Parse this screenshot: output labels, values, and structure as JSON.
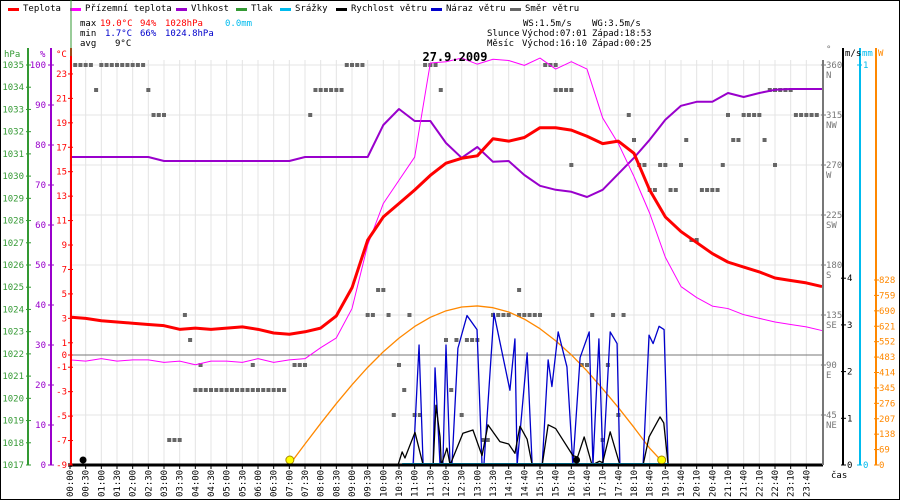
{
  "legend": [
    {
      "label": "Teplota",
      "color": "#ff0000"
    },
    {
      "label": "Přízemní teplota",
      "color": "#ff00ff"
    },
    {
      "label": "Vlhkost",
      "color": "#9900cc"
    },
    {
      "label": "Tlak",
      "color": "#339933"
    },
    {
      "label": "Srážky",
      "color": "#00bbee"
    },
    {
      "label": "Rychlost větru",
      "color": "#000000"
    },
    {
      "label": "Náraz větru",
      "color": "#0000cc"
    },
    {
      "label": "Směr větru",
      "color": "#666666"
    }
  ],
  "stats": {
    "max_label": "max",
    "max_temp": "19.0°C",
    "max_hum": "94%",
    "max_press": "1028hPa",
    "max_rain": "0.0mm",
    "min_label": "min",
    "min_temp": "1.7°C",
    "min_hum": "66%",
    "min_press": "1024.8hPa",
    "avg_label": "avg",
    "avg_temp": "9°C"
  },
  "astro": {
    "ws": "WS:1.5m/s",
    "wg": "WG:3.5m/s",
    "sun_label": "Slunce",
    "sun_rise": "Východ:07:01",
    "sun_set": "Západ:18:53",
    "moon_label": "Měsíc",
    "moon_rise": "Východ:16:10",
    "moon_set": "Západ:00:25"
  },
  "colors": {
    "temp": "#ff0000",
    "apparent": "#ff00ff",
    "humidity": "#9900cc",
    "pressure": "#339933",
    "precip": "#00bbee",
    "wind": "#000000",
    "gust": "#0000cc",
    "direction": "#666666",
    "solar": "#ff8800"
  },
  "chart_data": {
    "type": "line",
    "title": "27.9.2009",
    "xlabel": "čas",
    "x_tick_labels": [
      "00:00",
      "00:30",
      "01:00",
      "01:30",
      "02:00",
      "02:30",
      "03:00",
      "03:30",
      "04:00",
      "04:30",
      "05:00",
      "05:30",
      "06:00",
      "06:30",
      "07:00",
      "07:30",
      "08:00",
      "08:30",
      "09:00",
      "09:30",
      "10:00",
      "10:30",
      "11:00",
      "11:30",
      "12:00",
      "12:30",
      "13:00",
      "13:30",
      "14:10",
      "14:40",
      "15:10",
      "15:40",
      "16:10",
      "16:40",
      "17:10",
      "17:40",
      "18:10",
      "18:40",
      "19:10",
      "19:40",
      "20:10",
      "20:40",
      "21:10",
      "21:40",
      "22:10",
      "22:40",
      "23:10",
      "23:40"
    ],
    "xlim_hours": [
      0,
      24
    ],
    "axes": {
      "pressure": {
        "label": "hPa",
        "range": [
          1017,
          1035
        ],
        "ticks": [
          1017,
          1018,
          1019,
          1020,
          1021,
          1022,
          1023,
          1024,
          1025,
          1026,
          1027,
          1028,
          1029,
          1030,
          1031,
          1032,
          1033,
          1034,
          1035
        ]
      },
      "humidity": {
        "label": "%",
        "range": [
          0,
          100
        ],
        "ticks": [
          0,
          10,
          20,
          30,
          40,
          50,
          60,
          70,
          80,
          90,
          100
        ]
      },
      "temperature": {
        "label": "°C",
        "range": [
          -9,
          23.7
        ],
        "ticks": [
          -9,
          -7,
          -5,
          -3,
          -1,
          0,
          1,
          3,
          5,
          7,
          9,
          11,
          13,
          15,
          17,
          19,
          21,
          23
        ]
      },
      "direction": {
        "label": "°",
        "range": [
          0,
          360
        ],
        "ticks": [
          {
            "v": 45,
            "c": "NE"
          },
          {
            "v": 90,
            "c": "E"
          },
          {
            "v": 135,
            "c": "SE"
          },
          {
            "v": 180,
            "c": "S"
          },
          {
            "v": 225,
            "c": "SW"
          },
          {
            "v": 270,
            "c": "W"
          },
          {
            "v": 315,
            "c": "NW"
          },
          {
            "v": 360,
            "c": "N"
          }
        ]
      },
      "wind": {
        "label": "m/s",
        "range": [
          0,
          8.57
        ],
        "ticks": [
          0,
          1,
          2,
          3,
          4
        ]
      },
      "precip": {
        "label": "mm",
        "range": [
          0,
          1
        ],
        "ticks": [
          0,
          1
        ]
      },
      "solar": {
        "label": "W",
        "range": [
          0,
          1790
        ],
        "ticks": [
          0,
          69,
          138,
          207,
          276,
          345,
          414,
          483,
          552,
          621,
          690,
          759,
          828
        ]
      }
    },
    "series": {
      "temperature": {
        "name": "Teplota",
        "step_hours": 0.5,
        "values": [
          3.1,
          3.0,
          2.8,
          2.7,
          2.6,
          2.5,
          2.4,
          2.1,
          2.2,
          2.1,
          2.2,
          2.3,
          2.1,
          1.8,
          1.7,
          1.9,
          2.2,
          3.2,
          5.5,
          9.4,
          11.3,
          12.4,
          13.5,
          14.7,
          15.7,
          16.1,
          16.3,
          17.7,
          17.5,
          17.8,
          18.6,
          18.6,
          18.4,
          17.9,
          17.3,
          17.5,
          16.5,
          13.5,
          11.3,
          10.1,
          9.2,
          8.3,
          7.6,
          7.2,
          6.8,
          6.3,
          6.1,
          5.9,
          5.6
        ]
      },
      "apparent": {
        "name": "Přízemní teplota",
        "step_hours": 0.5,
        "values": [
          -0.4,
          -0.5,
          -0.3,
          -0.5,
          -0.4,
          -0.4,
          -0.6,
          -0.5,
          -0.8,
          -0.5,
          -0.5,
          -0.6,
          -0.3,
          -0.6,
          -0.4,
          -0.3,
          0.6,
          1.4,
          3.8,
          9.0,
          12.4,
          14.3,
          16.2,
          23.9,
          24.0,
          24.3,
          23.8,
          24.2,
          24.1,
          23.7,
          24.3,
          23.4,
          24.0,
          23.4,
          19.4,
          17.3,
          14.6,
          11.6,
          8.0,
          5.6,
          4.7,
          4.0,
          3.8,
          3.3,
          3.0,
          2.7,
          2.5,
          2.3,
          2.0
        ]
      },
      "humidity": {
        "name": "Vlhkost",
        "step_hours": 0.5,
        "values": [
          77,
          77,
          77,
          77,
          77,
          77,
          76,
          76,
          76,
          76,
          76,
          76,
          76,
          76,
          76,
          77,
          77,
          77,
          77,
          77,
          85,
          89,
          86,
          86,
          80.5,
          76.8,
          79.5,
          75.8,
          76,
          72.5,
          69.8,
          68.8,
          68.3,
          67,
          68.8,
          72.8,
          76.8,
          81.3,
          86.3,
          89.8,
          90.8,
          90.8,
          93,
          92,
          93,
          93.8,
          94,
          94,
          94
        ]
      },
      "wind_speed": {
        "name": "Rychlost větru",
        "points": [
          [
            0,
            0
          ],
          [
            10.47,
            0
          ],
          [
            10.6,
            0.28
          ],
          [
            10.69,
            0.15
          ],
          [
            11.01,
            0.7
          ],
          [
            11.27,
            0
          ],
          [
            11.59,
            0
          ],
          [
            11.68,
            1.28
          ],
          [
            11.81,
            0.6
          ],
          [
            11.85,
            0
          ],
          [
            12.03,
            0.36
          ],
          [
            12.13,
            0
          ],
          [
            12.54,
            0.68
          ],
          [
            12.86,
            0.75
          ],
          [
            13.15,
            0.2
          ],
          [
            13.34,
            0.86
          ],
          [
            13.72,
            0.5
          ],
          [
            14.0,
            0.45
          ],
          [
            14.2,
            0.25
          ],
          [
            14.36,
            0.83
          ],
          [
            14.59,
            0.55
          ],
          [
            14.75,
            0
          ],
          [
            15.07,
            0
          ],
          [
            15.26,
            0.86
          ],
          [
            15.5,
            0.78
          ],
          [
            16.05,
            0.2
          ],
          [
            16.2,
            0.17
          ],
          [
            16.41,
            0.6
          ],
          [
            16.66,
            0
          ],
          [
            16.9,
            0.08
          ],
          [
            17.0,
            0.05
          ],
          [
            17.24,
            0.71
          ],
          [
            17.55,
            0
          ],
          [
            18.29,
            0
          ],
          [
            18.48,
            0.6
          ],
          [
            18.83,
            1.03
          ],
          [
            18.95,
            0.9
          ],
          [
            19.09,
            0
          ],
          [
            24,
            0
          ]
        ]
      },
      "gust": {
        "name": "Náraz větru",
        "points": [
          [
            0,
            0
          ],
          [
            10.95,
            0
          ],
          [
            11.14,
            2.57
          ],
          [
            11.27,
            0
          ],
          [
            11.59,
            0
          ],
          [
            11.65,
            2.08
          ],
          [
            11.81,
            0
          ],
          [
            11.9,
            0
          ],
          [
            12.0,
            2.57
          ],
          [
            12.13,
            0
          ],
          [
            12.19,
            0
          ],
          [
            12.38,
            2.5
          ],
          [
            12.67,
            3.2
          ],
          [
            12.99,
            2.9
          ],
          [
            13.15,
            0
          ],
          [
            13.21,
            0
          ],
          [
            13.53,
            3.25
          ],
          [
            14.04,
            1.6
          ],
          [
            14.2,
            2.7
          ],
          [
            14.27,
            0
          ],
          [
            14.59,
            2.4
          ],
          [
            14.75,
            0
          ],
          [
            15.07,
            0
          ],
          [
            15.26,
            2.25
          ],
          [
            15.38,
            1.68
          ],
          [
            15.58,
            2.85
          ],
          [
            15.86,
            2.1
          ],
          [
            16.05,
            0
          ],
          [
            16.28,
            2.3
          ],
          [
            16.57,
            2.85
          ],
          [
            16.69,
            0
          ],
          [
            16.88,
            2.7
          ],
          [
            17.01,
            0
          ],
          [
            17.24,
            2.85
          ],
          [
            17.46,
            2.6
          ],
          [
            17.55,
            0
          ],
          [
            18.29,
            0
          ],
          [
            18.48,
            2.78
          ],
          [
            18.61,
            2.6
          ],
          [
            18.8,
            2.97
          ],
          [
            18.96,
            2.9
          ],
          [
            19.09,
            0
          ],
          [
            24,
            0
          ]
        ]
      },
      "solar": {
        "name": "Sluneční záření",
        "start_hour": 7,
        "step_hours": 0.5,
        "values": [
          0,
          94,
          186,
          275,
          359,
          437,
          507,
          568,
          620,
          661,
          690,
          707,
          712,
          704,
          685,
          653,
          610,
          556,
          493,
          421,
          341,
          257,
          168,
          75,
          0
        ]
      },
      "precipitation": {
        "name": "Srážky",
        "points": [
          [
            10.6,
            0
          ],
          [
            19.1,
            0
          ]
        ]
      },
      "direction": {
        "name": "Směr větru",
        "step_minutes": 10,
        "runs": [
          [
            "00:00",
            "00:00",
            0
          ],
          [
            "00:10",
            "00:40",
            360
          ],
          [
            "00:50",
            "00:50",
            337.5
          ],
          [
            "01:00",
            "02:20",
            360
          ],
          [
            "02:30",
            "02:30",
            337.5
          ],
          [
            "02:40",
            "03:00",
            315
          ],
          [
            "03:10",
            "03:30",
            22.5
          ],
          [
            "03:40",
            "03:40",
            135
          ],
          [
            "03:50",
            "03:50",
            112.5
          ],
          [
            "04:00",
            "06:50",
            67.5
          ],
          [
            "04:10",
            "04:10",
            90
          ],
          [
            "05:50",
            "05:50",
            90
          ],
          [
            "07:10",
            "07:30",
            90
          ],
          [
            "07:40",
            "07:40",
            315
          ],
          [
            "07:50",
            "08:40",
            337.5
          ],
          [
            "08:50",
            "09:20",
            360
          ],
          [
            "09:30",
            "09:40",
            135
          ],
          [
            "09:50",
            "10:00",
            157.5
          ],
          [
            "10:10",
            "10:10",
            135
          ],
          [
            "10:20",
            "10:20",
            45
          ],
          [
            "10:30",
            "10:30",
            90
          ],
          [
            "10:40",
            "10:40",
            67.5
          ],
          [
            "10:50",
            "10:50",
            135
          ],
          [
            "11:00",
            "11:10",
            45
          ],
          [
            "11:20",
            "11:40",
            360
          ],
          [
            "11:50",
            "11:50",
            337.5
          ],
          [
            "12:00",
            "12:00",
            112.5
          ],
          [
            "12:10",
            "12:10",
            67.5
          ],
          [
            "12:20",
            "12:20",
            112.5
          ],
          [
            "12:30",
            "12:30",
            45
          ],
          [
            "12:40",
            "13:00",
            112.5
          ],
          [
            "13:10",
            "13:20",
            22.5
          ],
          [
            "13:30",
            "14:00",
            135
          ],
          [
            "14:20",
            "14:20",
            157.5
          ],
          [
            "14:20",
            "15:00",
            135
          ],
          [
            "15:10",
            "15:30",
            360
          ],
          [
            "15:30",
            "16:00",
            337.5
          ],
          [
            "16:00",
            "16:00",
            270
          ],
          [
            "16:20",
            "16:30",
            90
          ],
          [
            "16:40",
            "16:40",
            135
          ],
          [
            "17:00",
            "17:00",
            22.5
          ],
          [
            "17:10",
            "17:10",
            90
          ],
          [
            "17:20",
            "17:20",
            135
          ],
          [
            "17:30",
            "17:30",
            45
          ],
          [
            "17:40",
            "17:40",
            135
          ],
          [
            "17:50",
            "17:50",
            315
          ],
          [
            "18:00",
            "18:00",
            292.5
          ],
          [
            "18:10",
            "18:20",
            270
          ],
          [
            "18:30",
            "18:40",
            247.5
          ],
          [
            "18:50",
            "19:00",
            270
          ],
          [
            "19:10",
            "19:20",
            247.5
          ],
          [
            "19:30",
            "19:30",
            270
          ],
          [
            "19:40",
            "19:40",
            292.5
          ],
          [
            "19:50",
            "20:00",
            202.5
          ],
          [
            "20:10",
            "20:40",
            247.5
          ],
          [
            "20:50",
            "20:50",
            270
          ],
          [
            "21:00",
            "21:00",
            315
          ],
          [
            "21:10",
            "21:20",
            292.5
          ],
          [
            "21:30",
            "22:00",
            315
          ],
          [
            "22:10",
            "22:10",
            292.5
          ],
          [
            "22:20",
            "23:00",
            337.5
          ],
          [
            "22:30",
            "22:30",
            270
          ],
          [
            "23:10",
            "23:50",
            315
          ]
        ]
      }
    },
    "markers": {
      "sunrise": "07:01",
      "sunset": "18:53",
      "moonrise": "16:10",
      "moonset": "00:25"
    },
    "grid": true
  }
}
